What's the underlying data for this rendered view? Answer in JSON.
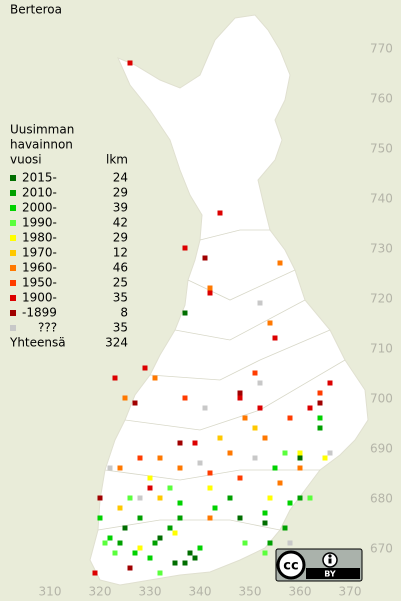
{
  "title": "Berteroa",
  "legend": {
    "header": [
      "Uusimman",
      "havainnon",
      "vuosi"
    ],
    "count_header": "lkm",
    "rows": [
      {
        "label": "2015-",
        "count": 24,
        "color": "#006e00",
        "cells": [
          [
            337,
            717
          ],
          [
            338,
            669
          ],
          [
            339,
            668
          ],
          [
            337,
            667
          ],
          [
            335,
            667
          ],
          [
            348,
            676
          ],
          [
            360,
            688
          ],
          [
            325,
            674
          ],
          [
            353,
            675
          ],
          [
            332,
            672
          ]
        ]
      },
      {
        "label": "2010-",
        "count": 29,
        "color": "#00a000",
        "cells": [
          [
            331,
            671
          ],
          [
            334,
            674
          ],
          [
            336,
            676
          ],
          [
            354,
            671
          ],
          [
            357,
            674
          ],
          [
            360,
            680
          ],
          [
            346,
            680
          ],
          [
            324,
            671
          ],
          [
            328,
            676
          ],
          [
            364,
            694
          ]
        ]
      },
      {
        "label": "2000-",
        "count": 39,
        "color": "#00d200",
        "cells": [
          [
            322,
            672
          ],
          [
            327,
            669
          ],
          [
            330,
            668
          ],
          [
            353,
            677
          ],
          [
            358,
            679
          ],
          [
            343,
            678
          ],
          [
            348,
            701
          ],
          [
            364,
            696
          ],
          [
            336,
            679
          ],
          [
            320,
            676
          ],
          [
            340,
            670
          ],
          [
            355,
            686
          ]
        ]
      },
      {
        "label": "1990-",
        "count": 42,
        "color": "#5aff3c",
        "cells": [
          [
            323,
            669
          ],
          [
            332,
            665
          ],
          [
            349,
            671
          ],
          [
            353,
            669
          ],
          [
            362,
            680
          ],
          [
            357,
            689
          ],
          [
            321,
            671
          ],
          [
            326,
            680
          ],
          [
            334,
            682
          ]
        ]
      },
      {
        "label": "1980-",
        "count": 29,
        "color": "#ffff00",
        "cells": [
          [
            328,
            670
          ],
          [
            335,
            673
          ],
          [
            360,
            689
          ],
          [
            330,
            684
          ],
          [
            342,
            682
          ],
          [
            365,
            688
          ],
          [
            354,
            680
          ]
        ]
      },
      {
        "label": "1970-",
        "count": 12,
        "color": "#ffc800",
        "cells": [
          [
            351,
            694
          ],
          [
            344,
            692
          ],
          [
            332,
            680
          ],
          [
            324,
            678
          ]
        ]
      },
      {
        "label": "1960-",
        "count": 46,
        "color": "#ff7800",
        "cells": [
          [
            356,
            727
          ],
          [
            342,
            722
          ],
          [
            354,
            715
          ],
          [
            331,
            704
          ],
          [
            325,
            700
          ],
          [
            349,
            696
          ],
          [
            324,
            686
          ],
          [
            336,
            686
          ],
          [
            360,
            686
          ],
          [
            342,
            676
          ],
          [
            346,
            689
          ],
          [
            353,
            692
          ],
          [
            332,
            688
          ],
          [
            356,
            683
          ]
        ]
      },
      {
        "label": "1950-",
        "count": 25,
        "color": "#ff3c00",
        "cells": [
          [
            337,
            700
          ],
          [
            351,
            705
          ],
          [
            342,
            685
          ],
          [
            328,
            688
          ],
          [
            364,
            701
          ],
          [
            348,
            684
          ],
          [
            358,
            696
          ]
        ]
      },
      {
        "label": "1900-",
        "count": 35,
        "color": "#dc0000",
        "cells": [
          [
            344,
            737
          ],
          [
            337,
            730
          ],
          [
            342,
            721
          ],
          [
            355,
            712
          ],
          [
            329,
            706
          ],
          [
            323,
            704
          ],
          [
            348,
            700
          ],
          [
            366,
            703
          ],
          [
            352,
            698
          ],
          [
            339,
            691
          ],
          [
            330,
            682
          ],
          [
            319,
            665
          ],
          [
            362,
            698
          ],
          [
            326,
            767
          ]
        ]
      },
      {
        "label": "-1899",
        "count": 8,
        "color": "#a00000",
        "cells": [
          [
            341,
            728
          ],
          [
            348,
            701
          ],
          [
            327,
            699
          ],
          [
            364,
            699
          ],
          [
            336,
            691
          ],
          [
            320,
            680
          ],
          [
            326,
            666
          ]
        ]
      },
      {
        "label": "???",
        "count": 35,
        "color": "#c8c8c8",
        "cells": [
          [
            352,
            719
          ],
          [
            341,
            698
          ],
          [
            340,
            687
          ],
          [
            351,
            688
          ],
          [
            366,
            689
          ],
          [
            328,
            680
          ],
          [
            352,
            703
          ],
          [
            322,
            686
          ],
          [
            358,
            671
          ]
        ]
      }
    ],
    "total_label": "Yhteensä",
    "total": 324
  },
  "xticks": [
    310,
    320,
    330,
    340,
    350,
    360,
    370
  ],
  "yticks": [
    770,
    760,
    750,
    740,
    730,
    720,
    710,
    700,
    690,
    680,
    670
  ],
  "license": {
    "logo": "cc",
    "label": "BY"
  }
}
